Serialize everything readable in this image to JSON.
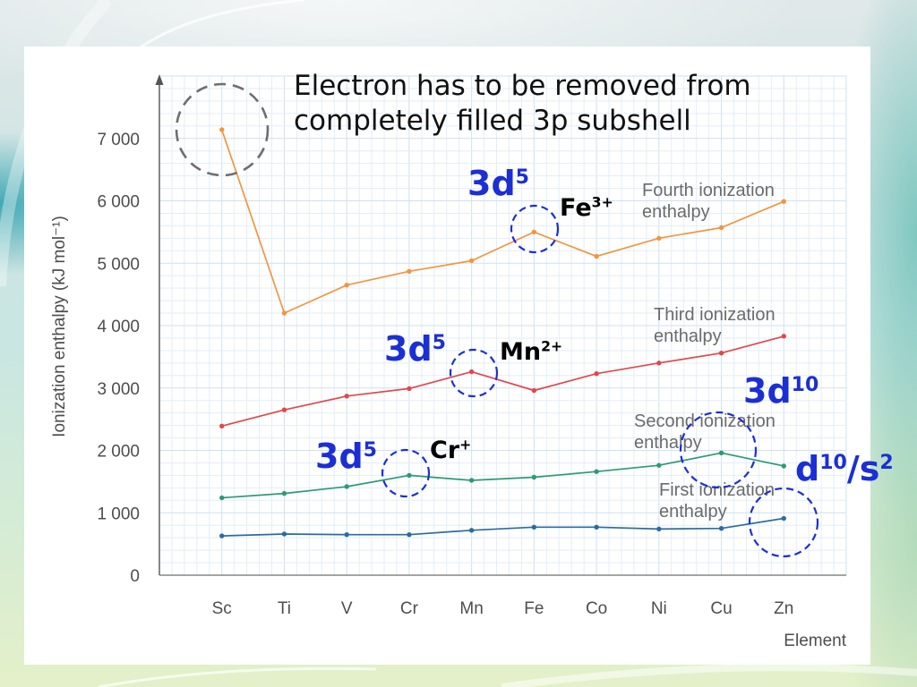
{
  "note": {
    "lines": [
      "Electron has to be removed from",
      "completely filled 3p subshell"
    ]
  },
  "annotations": {
    "fe_config": {
      "base": "3d",
      "sup": "5"
    },
    "fe_ion": {
      "base": "Fe",
      "sup": "3+"
    },
    "mn_config": {
      "base": "3d",
      "sup": "5"
    },
    "mn_ion": {
      "base": "Mn",
      "sup": "2+"
    },
    "cr_config": {
      "base": "3d",
      "sup": "5"
    },
    "cr_ion": {
      "base": "Cr",
      "sup": "+"
    },
    "cu_config": {
      "base": "3d",
      "sup": "10"
    },
    "zn_config": {
      "base1": "d",
      "sup1": "10",
      "base2": "/s",
      "sup2": "2"
    }
  },
  "colors": {
    "annotation_blue": "#1b2fd4",
    "ion_text": "#000000",
    "note_text": "#111111",
    "highlight_gray": "#6e6e6e"
  },
  "chart_data": {
    "type": "line",
    "xlabel": "Element",
    "ylabel": "Ionization enthalpy (kJ mol⁻¹)",
    "categories": [
      "Sc",
      "Ti",
      "V",
      "Cr",
      "Mn",
      "Fe",
      "Co",
      "Ni",
      "Cu",
      "Zn"
    ],
    "ylim": [
      0,
      8000
    ],
    "yticks": [
      0,
      1000,
      2000,
      3000,
      4000,
      5000,
      6000,
      7000
    ],
    "yticklabels": [
      "0",
      "1 000",
      "2 000",
      "3 000",
      "4 000",
      "5 000",
      "6 000",
      "7 000"
    ],
    "grid": true,
    "series": [
      {
        "name": "First ionization enthalpy",
        "color": "#2b6c9f",
        "values": [
          630,
          660,
          650,
          650,
          720,
          770,
          770,
          740,
          750,
          910
        ]
      },
      {
        "name": "Second ionization enthalpy",
        "color": "#2c9a74",
        "values": [
          1240,
          1310,
          1420,
          1600,
          1520,
          1570,
          1660,
          1760,
          1960,
          1750
        ]
      },
      {
        "name": "Third ionization enthalpy",
        "color": "#e0484c",
        "values": [
          2390,
          2650,
          2870,
          2990,
          3260,
          2960,
          3230,
          3400,
          3560,
          3830
        ]
      },
      {
        "name": "Fourth ionization enthalpy",
        "color": "#f2953f",
        "values": [
          7140,
          4200,
          4650,
          4870,
          5040,
          5500,
          5110,
          5400,
          5570,
          5990
        ]
      }
    ]
  }
}
